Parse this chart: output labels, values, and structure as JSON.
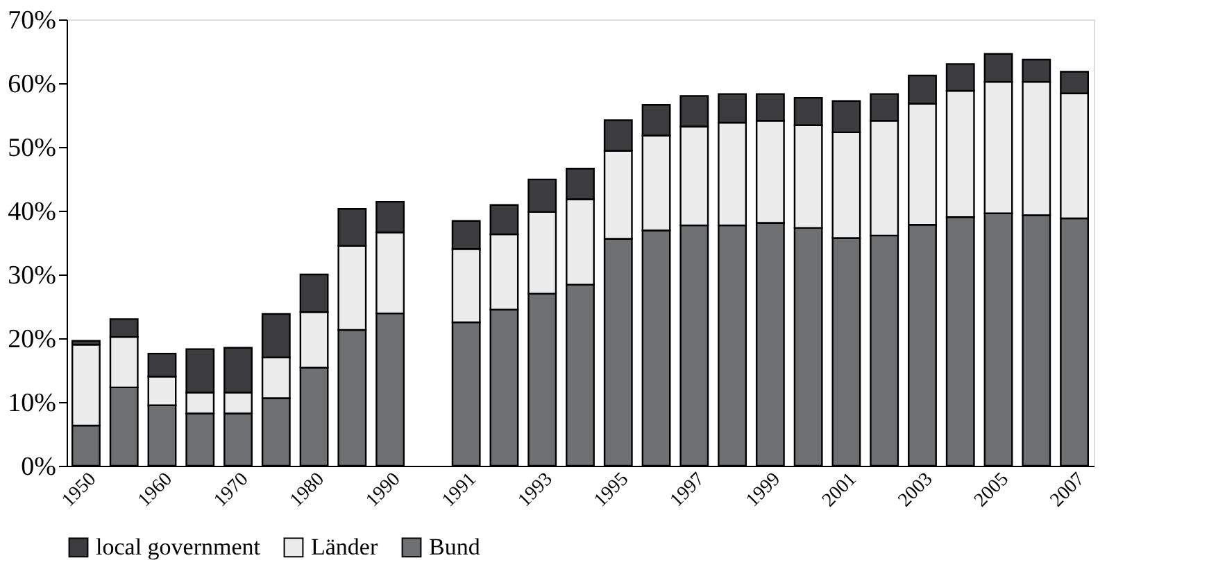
{
  "chart_data": {
    "type": "bar",
    "stacked": true,
    "legend": "bottom",
    "grid": false,
    "categories": [
      "1950",
      null,
      "1960",
      null,
      "1970",
      null,
      "1980",
      null,
      "1990",
      null,
      "1991",
      null,
      "1993",
      null,
      "1995",
      null,
      "1997",
      null,
      "1999",
      null,
      "2001",
      null,
      "2003",
      null,
      "2005",
      null,
      "2007"
    ],
    "series": [
      {
        "name": "Bund",
        "color": "#6e6f71",
        "values": [
          6.3,
          12.3,
          9.5,
          8.2,
          8.2,
          10.6,
          15.4,
          21.3,
          23.9,
          null,
          22.5,
          24.5,
          27.0,
          28.4,
          35.6,
          36.9,
          37.7,
          37.7,
          38.1,
          37.3,
          35.7,
          36.1,
          37.8,
          39.0,
          39.6,
          39.3,
          38.8
        ]
      },
      {
        "name": "Länder",
        "color": "#ebeceb",
        "values": [
          12.7,
          7.9,
          4.5,
          3.3,
          3.3,
          6.4,
          8.7,
          13.2,
          12.7,
          null,
          11.5,
          11.8,
          12.8,
          13.4,
          13.8,
          14.9,
          15.5,
          16.1,
          16.0,
          16.1,
          16.6,
          18.0,
          19.0,
          19.8,
          20.6,
          20.9,
          19.6
        ]
      },
      {
        "name": "local government",
        "color": "#3c3c3e",
        "values": [
          0.6,
          2.8,
          3.6,
          6.8,
          7.0,
          6.8,
          5.9,
          5.8,
          4.8,
          null,
          4.4,
          4.6,
          5.1,
          4.8,
          4.8,
          4.8,
          4.8,
          4.5,
          4.2,
          4.3,
          4.9,
          4.2,
          4.4,
          4.2,
          4.4,
          3.5,
          3.4
        ]
      }
    ],
    "ylim": [
      0,
      70
    ],
    "yticks": [
      {
        "value": 0,
        "label": "0%"
      },
      {
        "value": 10,
        "label": "10%"
      },
      {
        "value": 20,
        "label": "20%"
      },
      {
        "value": 30,
        "label": "30%"
      },
      {
        "value": 40,
        "label": "40%"
      },
      {
        "value": 50,
        "label": "50%"
      },
      {
        "value": 60,
        "label": "60%"
      },
      {
        "value": 70,
        "label": "70%"
      }
    ]
  }
}
